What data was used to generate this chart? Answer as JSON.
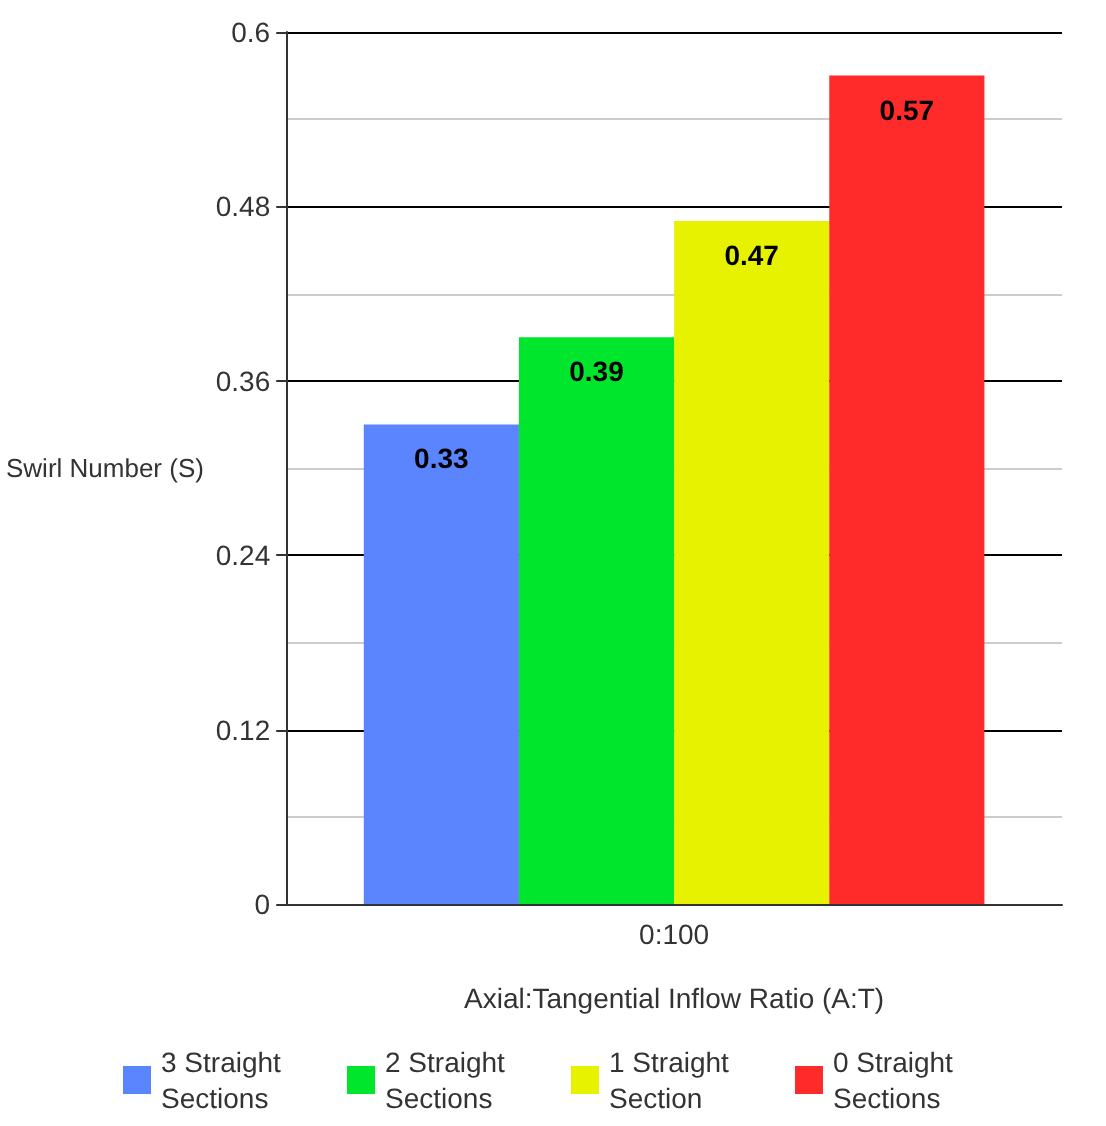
{
  "chart_data": {
    "type": "bar",
    "xlabel": "Axial:Tangential Inflow Ratio (A:T)",
    "ylabel": "Swirl Number (S)",
    "categories": [
      "0:100"
    ],
    "series": [
      {
        "name": "3 Straight Sections",
        "color": "#5b85ff",
        "values": [
          0.33
        ]
      },
      {
        "name": "2 Straight Sections",
        "color": "#00e62c",
        "values": [
          0.39
        ]
      },
      {
        "name": "1 Straight Section",
        "color": "#e6f200",
        "values": [
          0.47
        ]
      },
      {
        "name": "0 Straight Sections",
        "color": "#ff2b2b",
        "values": [
          0.57
        ]
      }
    ],
    "ylim": [
      0,
      0.6
    ],
    "yticks": [
      0,
      0.12,
      0.24,
      0.36,
      0.48,
      0.6
    ],
    "grid": "y",
    "legend": "bottom",
    "data_labels": true
  }
}
